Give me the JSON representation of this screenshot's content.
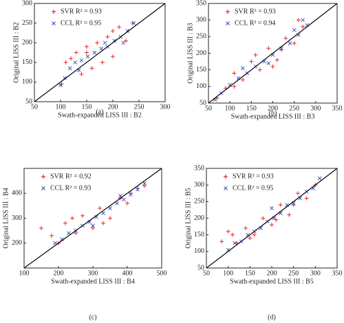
{
  "chart_data": [
    {
      "type": "scatter",
      "caption": "(a)",
      "x_label": "Swath-expanded LISS III : B2",
      "y_label": "Original LISS III : B2",
      "xlim": [
        50,
        300
      ],
      "ylim": [
        50,
        300
      ],
      "xticks": [
        50,
        100,
        150,
        200,
        250,
        300
      ],
      "yticks": [
        50,
        100,
        150,
        200,
        250,
        300
      ],
      "series": [
        {
          "name": "SVR R² = 0.93",
          "color": "#e8262a",
          "marker": "+",
          "x": [
            102,
            110,
            120,
            130,
            140,
            150,
            160,
            170,
            180,
            190,
            200,
            212,
            225,
            238,
            150,
            200
          ],
          "y": [
            95,
            150,
            160,
            175,
            120,
            190,
            135,
            200,
            150,
            215,
            165,
            240,
            205,
            250,
            175,
            230
          ]
        },
        {
          "name": "CCL R² = 0.95",
          "color": "#3b55c9",
          "marker": "x",
          "x": [
            100,
            108,
            118,
            128,
            140,
            152,
            165,
            178,
            190,
            203,
            215,
            228,
            240,
            135,
            185,
            220
          ],
          "y": [
            92,
            110,
            135,
            150,
            155,
            165,
            175,
            185,
            190,
            205,
            215,
            230,
            250,
            130,
            200,
            200
          ]
        }
      ]
    },
    {
      "type": "scatter",
      "caption": "(b)",
      "x_label": "Swath-expanded LISS III : B3",
      "y_label": "Original LISS III : B3",
      "xlim": [
        50,
        350
      ],
      "ylim": [
        50,
        350
      ],
      "xticks": [
        50,
        100,
        150,
        200,
        250,
        300,
        350
      ],
      "yticks": [
        50,
        100,
        150,
        200,
        250,
        300,
        350
      ],
      "series": [
        {
          "name": "SVR R² = 0.93",
          "color": "#e8262a",
          "marker": "+",
          "x": [
            70,
            90,
            110,
            130,
            150,
            170,
            190,
            210,
            230,
            250,
            270,
            110,
            160,
            220,
            260,
            200
          ],
          "y": [
            65,
            95,
            140,
            120,
            175,
            150,
            215,
            180,
            245,
            230,
            280,
            100,
            195,
            210,
            300,
            160
          ]
        },
        {
          "name": "CCL R² = 0.94",
          "color": "#3b55c9",
          "marker": "x",
          "x": [
            65,
            80,
            100,
            120,
            140,
            160,
            180,
            200,
            220,
            240,
            260,
            280,
            130,
            190,
            250,
            270
          ],
          "y": [
            60,
            80,
            105,
            125,
            140,
            160,
            175,
            195,
            215,
            230,
            255,
            285,
            155,
            170,
            270,
            300
          ]
        }
      ]
    },
    {
      "type": "scatter",
      "caption": "(c)",
      "x_label": "Swath-expanded LISS III : B4",
      "y_label": "Original LISS III : B4",
      "xlim": [
        100,
        500
      ],
      "ylim": [
        100,
        500
      ],
      "xticks": [
        100,
        200,
        300,
        400,
        500
      ],
      "yticks": [
        200,
        300,
        400
      ],
      "series": [
        {
          "name": "SVR R² = 0.92",
          "color": "#e8262a",
          "marker": "+",
          "x": [
            150,
            180,
            200,
            220,
            250,
            270,
            300,
            320,
            350,
            380,
            400,
            430,
            450,
            240,
            330,
            410
          ],
          "y": [
            260,
            230,
            200,
            280,
            240,
            310,
            260,
            340,
            300,
            380,
            360,
            420,
            430,
            300,
            280,
            400
          ]
        },
        {
          "name": "CCL R² = 0.93",
          "color": "#3b55c9",
          "marker": "x",
          "x": [
            190,
            210,
            230,
            250,
            270,
            290,
            310,
            330,
            350,
            370,
            390,
            410,
            430,
            450,
            300,
            380
          ],
          "y": [
            200,
            215,
            240,
            250,
            270,
            285,
            305,
            320,
            340,
            360,
            375,
            395,
            415,
            440,
            270,
            390
          ]
        }
      ]
    },
    {
      "type": "scatter",
      "caption": "(d)",
      "x_label": "Swath-expanded LISS III : B5",
      "y_label": "Original LISS III : B5",
      "xlim": [
        50,
        350
      ],
      "ylim": [
        50,
        350
      ],
      "xticks": [
        50,
        100,
        150,
        200,
        250,
        300,
        350
      ],
      "yticks": [
        50,
        100,
        150,
        200,
        250,
        300,
        350
      ],
      "series": [
        {
          "name": "SVR R² = 0.93",
          "color": "#e8262a",
          "marker": "+",
          "x": [
            85,
            100,
            120,
            140,
            160,
            180,
            200,
            220,
            240,
            260,
            280,
            300,
            150,
            210,
            250,
            110
          ],
          "y": [
            130,
            160,
            125,
            170,
            150,
            200,
            180,
            240,
            210,
            275,
            260,
            300,
            140,
            195,
            240,
            150
          ]
        },
        {
          "name": "CCL R² = 0.95",
          "color": "#3b55c9",
          "marker": "x",
          "x": [
            100,
            115,
            130,
            145,
            160,
            175,
            190,
            205,
            220,
            235,
            250,
            265,
            280,
            295,
            310,
            200
          ],
          "y": [
            105,
            125,
            130,
            150,
            160,
            170,
            190,
            200,
            215,
            240,
            245,
            260,
            280,
            290,
            320,
            230
          ]
        }
      ]
    }
  ]
}
